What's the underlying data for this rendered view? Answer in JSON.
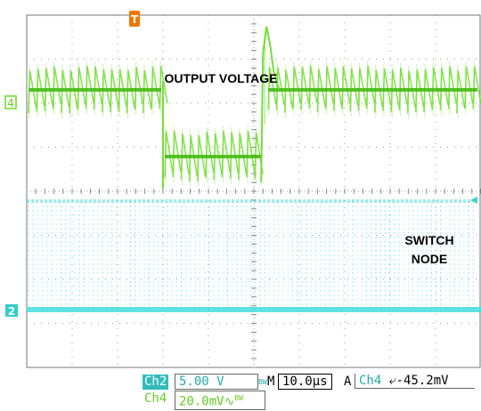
{
  "chart_data": {
    "type": "line",
    "instrument": "oscilloscope",
    "annotations": [
      "OUTPUT VOLTAGE",
      "SWITCH NODE"
    ],
    "trigger_marker": "T",
    "grid": true,
    "divisions": {
      "horizontal": 10,
      "vertical": 8
    },
    "series": [
      {
        "channel": "4",
        "color": "#66dd22",
        "scale": "20.0mV",
        "coupling_symbol": "∿",
        "bandwidth_limit": "BW",
        "behavior": "ripple waveform; steps down between 3.0 and 5.2 div, overshoots at step back up",
        "levels_div": {
          "high": 0.9,
          "low": -1.7
        }
      },
      {
        "channel": "2",
        "color": "#44dddd",
        "scale": "5.00 V",
        "bandwidth_limit": "BW",
        "behavior": "switching pulses between ground and ~3.05 div"
      }
    ],
    "horizontal": {
      "label": "M",
      "scale": "10.0µs"
    },
    "trigger": {
      "mode": "A",
      "source": "Ch4",
      "slope_symbol": "⤶",
      "level": "-45.2mV"
    }
  },
  "readout": {
    "ch2_label": "Ch2",
    "ch2_scale": "5.00 V",
    "ch2_bw": "BW",
    "ch4_label": "Ch4",
    "ch4_scale": "20.0mV",
    "ch4_coupling": "∿",
    "ch4_bw": "BW",
    "timebase_prefix": "M",
    "timebase": "10.0µs",
    "trig_mode": "A",
    "trig_source": "Ch4",
    "trig_slope": "⤶",
    "trig_level": "-45.2mV"
  },
  "markers": {
    "ch4": "4",
    "ch2": "2",
    "trigger": "T"
  },
  "colors": {
    "ch4": "#66dd22",
    "ch2": "#44dddd",
    "trigger": "#ee7700",
    "readout_bg": "#33bbbb"
  }
}
